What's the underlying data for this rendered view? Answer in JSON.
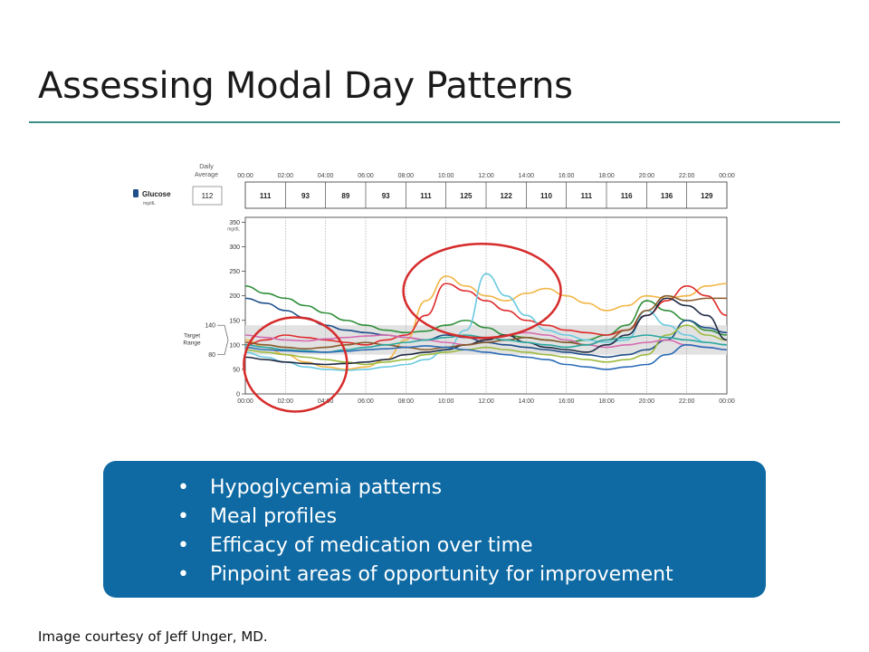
{
  "slide": {
    "title": "Assessing Modal Day Patterns",
    "bullets": [
      "Hypoglycemia patterns",
      "Meal profiles",
      "Efficacy of medication over time",
      "Pinpoint areas of opportunity for improvement"
    ],
    "credit": "Image courtesy of Jeff Unger, MD."
  },
  "chart_data": {
    "type": "line",
    "daily_average_label": "Daily\nAverage",
    "metric_label": "Glucose",
    "metric_unit": "mg/dL",
    "daily_average_value": "112",
    "x_ticks": [
      "00:00",
      "02:00",
      "04:00",
      "06:00",
      "08:00",
      "10:00",
      "12:00",
      "14:00",
      "16:00",
      "18:00",
      "20:00",
      "22:00",
      "00:00"
    ],
    "hourly_block_labels": [
      "111",
      "93",
      "89",
      "93",
      "111",
      "125",
      "122",
      "110",
      "111",
      "116",
      "136",
      "129"
    ],
    "ylabel": "mg/dL",
    "yticks": [
      0,
      50,
      100,
      150,
      200,
      250,
      300,
      350
    ],
    "ylim": [
      0,
      360
    ],
    "target_range": {
      "label": "Target\nRange",
      "low": 80,
      "high": 140
    },
    "colors": {
      "brand_box": "#0f6aa3",
      "rule": "#3a8f8a",
      "annotation": "#d62b2b"
    },
    "series": [
      {
        "color": "#2f8f3a",
        "values": [
          [
            0,
            220
          ],
          [
            1,
            205
          ],
          [
            2,
            195
          ],
          [
            3,
            180
          ],
          [
            4,
            165
          ],
          [
            5,
            150
          ],
          [
            6,
            140
          ],
          [
            7,
            130
          ],
          [
            8,
            125
          ],
          [
            9,
            128
          ],
          [
            10,
            140
          ],
          [
            11,
            150
          ],
          [
            12,
            135
          ],
          [
            13,
            120
          ],
          [
            14,
            115
          ],
          [
            15,
            110
          ],
          [
            16,
            105
          ],
          [
            17,
            110
          ],
          [
            18,
            120
          ],
          [
            19,
            140
          ],
          [
            20,
            190
          ],
          [
            21,
            170
          ],
          [
            22,
            150
          ],
          [
            23,
            130
          ],
          [
            24,
            120
          ]
        ]
      },
      {
        "color": "#1e4f8a",
        "values": [
          [
            0,
            195
          ],
          [
            1,
            185
          ],
          [
            2,
            170
          ],
          [
            3,
            155
          ],
          [
            4,
            140
          ],
          [
            5,
            130
          ],
          [
            6,
            125
          ],
          [
            7,
            120
          ],
          [
            8,
            115
          ],
          [
            9,
            110
          ],
          [
            10,
            120
          ],
          [
            11,
            115
          ],
          [
            12,
            105
          ],
          [
            13,
            100
          ],
          [
            14,
            95
          ],
          [
            15,
            90
          ],
          [
            16,
            85
          ],
          [
            17,
            80
          ],
          [
            18,
            75
          ],
          [
            19,
            80
          ],
          [
            20,
            90
          ],
          [
            21,
            110
          ],
          [
            22,
            150
          ],
          [
            23,
            135
          ],
          [
            24,
            125
          ]
        ]
      },
      {
        "color": "#f2b544",
        "values": [
          [
            0,
            110
          ],
          [
            1,
            95
          ],
          [
            2,
            80
          ],
          [
            3,
            65
          ],
          [
            4,
            55
          ],
          [
            5,
            50
          ],
          [
            6,
            55
          ],
          [
            7,
            70
          ],
          [
            8,
            110
          ],
          [
            9,
            190
          ],
          [
            10,
            240
          ],
          [
            11,
            220
          ],
          [
            12,
            200
          ],
          [
            13,
            190
          ],
          [
            14,
            205
          ],
          [
            15,
            215
          ],
          [
            16,
            200
          ],
          [
            17,
            185
          ],
          [
            18,
            170
          ],
          [
            19,
            180
          ],
          [
            20,
            200
          ],
          [
            21,
            195
          ],
          [
            22,
            200
          ],
          [
            23,
            220
          ],
          [
            24,
            225
          ]
        ]
      },
      {
        "color": "#e02b2b",
        "values": [
          [
            0,
            100
          ],
          [
            1,
            110
          ],
          [
            2,
            120
          ],
          [
            3,
            115
          ],
          [
            4,
            110
          ],
          [
            5,
            105
          ],
          [
            6,
            100
          ],
          [
            7,
            110
          ],
          [
            8,
            120
          ],
          [
            9,
            160
          ],
          [
            10,
            225
          ],
          [
            11,
            210
          ],
          [
            12,
            190
          ],
          [
            13,
            170
          ],
          [
            14,
            150
          ],
          [
            15,
            140
          ],
          [
            16,
            130
          ],
          [
            17,
            125
          ],
          [
            18,
            120
          ],
          [
            19,
            130
          ],
          [
            20,
            160
          ],
          [
            21,
            190
          ],
          [
            22,
            220
          ],
          [
            23,
            200
          ],
          [
            24,
            160
          ]
        ]
      },
      {
        "color": "#6bc9e0",
        "values": [
          [
            0,
            85
          ],
          [
            1,
            75
          ],
          [
            2,
            65
          ],
          [
            3,
            55
          ],
          [
            4,
            50
          ],
          [
            5,
            48
          ],
          [
            6,
            50
          ],
          [
            7,
            55
          ],
          [
            8,
            60
          ],
          [
            9,
            70
          ],
          [
            10,
            90
          ],
          [
            11,
            130
          ],
          [
            12,
            245
          ],
          [
            13,
            200
          ],
          [
            14,
            160
          ],
          [
            15,
            130
          ],
          [
            16,
            120
          ],
          [
            17,
            110
          ],
          [
            18,
            105
          ],
          [
            19,
            110
          ],
          [
            20,
            170
          ],
          [
            21,
            140
          ],
          [
            22,
            120
          ],
          [
            23,
            105
          ],
          [
            24,
            100
          ]
        ]
      },
      {
        "color": "#9dbb3f",
        "values": [
          [
            0,
            90
          ],
          [
            1,
            85
          ],
          [
            2,
            80
          ],
          [
            3,
            75
          ],
          [
            4,
            70
          ],
          [
            5,
            65
          ],
          [
            6,
            60
          ],
          [
            7,
            65
          ],
          [
            8,
            70
          ],
          [
            9,
            80
          ],
          [
            10,
            85
          ],
          [
            11,
            90
          ],
          [
            12,
            95
          ],
          [
            13,
            90
          ],
          [
            14,
            85
          ],
          [
            15,
            80
          ],
          [
            16,
            75
          ],
          [
            17,
            70
          ],
          [
            18,
            65
          ],
          [
            19,
            70
          ],
          [
            20,
            80
          ],
          [
            21,
            120
          ],
          [
            22,
            140
          ],
          [
            23,
            120
          ],
          [
            24,
            110
          ]
        ]
      },
      {
        "color": "#d66bb0",
        "values": [
          [
            0,
            120
          ],
          [
            1,
            115
          ],
          [
            2,
            110
          ],
          [
            3,
            108
          ],
          [
            4,
            112
          ],
          [
            5,
            115
          ],
          [
            6,
            118
          ],
          [
            7,
            120
          ],
          [
            8,
            115
          ],
          [
            9,
            110
          ],
          [
            10,
            105
          ],
          [
            11,
            100
          ],
          [
            12,
            110
          ],
          [
            13,
            120
          ],
          [
            14,
            125
          ],
          [
            15,
            120
          ],
          [
            16,
            110
          ],
          [
            17,
            100
          ],
          [
            18,
            95
          ],
          [
            19,
            100
          ],
          [
            20,
            105
          ],
          [
            21,
            110
          ],
          [
            22,
            100
          ],
          [
            23,
            95
          ],
          [
            24,
            90
          ]
        ]
      },
      {
        "color": "#1f2a44",
        "values": [
          [
            0,
            75
          ],
          [
            1,
            70
          ],
          [
            2,
            65
          ],
          [
            3,
            62
          ],
          [
            4,
            60
          ],
          [
            5,
            62
          ],
          [
            6,
            65
          ],
          [
            7,
            70
          ],
          [
            8,
            80
          ],
          [
            9,
            85
          ],
          [
            10,
            90
          ],
          [
            11,
            100
          ],
          [
            12,
            110
          ],
          [
            13,
            120
          ],
          [
            14,
            105
          ],
          [
            15,
            95
          ],
          [
            16,
            90
          ],
          [
            17,
            85
          ],
          [
            18,
            100
          ],
          [
            19,
            120
          ],
          [
            20,
            160
          ],
          [
            21,
            195
          ],
          [
            22,
            180
          ],
          [
            23,
            160
          ],
          [
            24,
            110
          ]
        ]
      },
      {
        "color": "#8a5a2b",
        "values": [
          [
            0,
            105
          ],
          [
            1,
            100
          ],
          [
            2,
            95
          ],
          [
            3,
            92
          ],
          [
            4,
            95
          ],
          [
            5,
            100
          ],
          [
            6,
            105
          ],
          [
            7,
            100
          ],
          [
            8,
            95
          ],
          [
            9,
            90
          ],
          [
            10,
            95
          ],
          [
            11,
            100
          ],
          [
            12,
            105
          ],
          [
            13,
            110
          ],
          [
            14,
            115
          ],
          [
            15,
            110
          ],
          [
            16,
            105
          ],
          [
            17,
            100
          ],
          [
            18,
            110
          ],
          [
            19,
            130
          ],
          [
            20,
            170
          ],
          [
            21,
            200
          ],
          [
            22,
            190
          ],
          [
            23,
            195
          ],
          [
            24,
            195
          ]
        ]
      },
      {
        "color": "#2aa7a0",
        "values": [
          [
            0,
            100
          ],
          [
            1,
            95
          ],
          [
            2,
            90
          ],
          [
            3,
            88
          ],
          [
            4,
            85
          ],
          [
            5,
            90
          ],
          [
            6,
            95
          ],
          [
            7,
            100
          ],
          [
            8,
            105
          ],
          [
            9,
            110
          ],
          [
            10,
            115
          ],
          [
            11,
            120
          ],
          [
            12,
            115
          ],
          [
            13,
            110
          ],
          [
            14,
            105
          ],
          [
            15,
            100
          ],
          [
            16,
            95
          ],
          [
            17,
            100
          ],
          [
            18,
            110
          ],
          [
            19,
            115
          ],
          [
            20,
            120
          ],
          [
            21,
            115
          ],
          [
            22,
            110
          ],
          [
            23,
            105
          ],
          [
            24,
            100
          ]
        ]
      },
      {
        "color": "#2b6cb8",
        "values": [
          [
            0,
            95
          ],
          [
            1,
            90
          ],
          [
            2,
            88
          ],
          [
            3,
            86
          ],
          [
            4,
            85
          ],
          [
            5,
            87
          ],
          [
            6,
            90
          ],
          [
            7,
            92
          ],
          [
            8,
            95
          ],
          [
            9,
            98
          ],
          [
            10,
            95
          ],
          [
            11,
            90
          ],
          [
            12,
            85
          ],
          [
            13,
            80
          ],
          [
            14,
            75
          ],
          [
            15,
            70
          ],
          [
            16,
            60
          ],
          [
            17,
            55
          ],
          [
            18,
            50
          ],
          [
            19,
            55
          ],
          [
            20,
            60
          ],
          [
            21,
            80
          ],
          [
            22,
            100
          ],
          [
            23,
            95
          ],
          [
            24,
            90
          ]
        ]
      }
    ]
  }
}
